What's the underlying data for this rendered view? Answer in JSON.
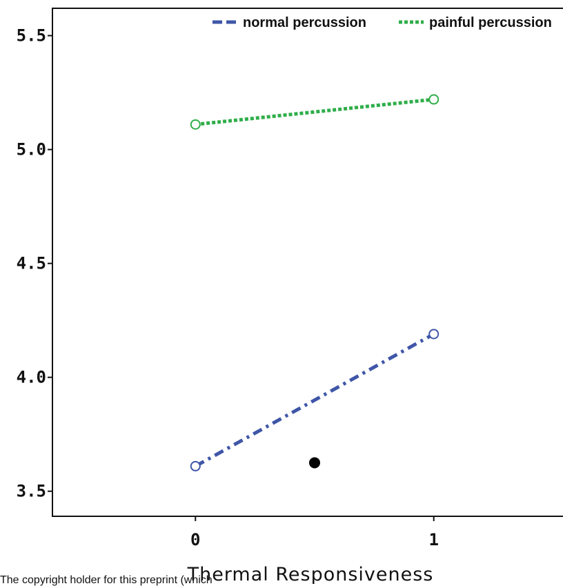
{
  "chart_data": {
    "type": "line",
    "title": "",
    "xlabel": "Thermal Responsiveness",
    "ylabel": "",
    "x_ticks": [
      "0",
      "1"
    ],
    "y_ticks": [
      "3.5",
      "4.0",
      "4.5",
      "5.0",
      "5.5"
    ],
    "xlim": [
      -0.6,
      1.6
    ],
    "ylim": [
      3.39,
      5.62
    ],
    "grid": false,
    "legend_position": "top-right",
    "series": [
      {
        "name": "normal percussion",
        "x": [
          0,
          1
        ],
        "values": [
          3.61,
          4.19
        ],
        "color": "#3f56a8",
        "dash": "dash-dot"
      },
      {
        "name": "painful percussion",
        "x": [
          0,
          1
        ],
        "values": [
          5.11,
          5.22
        ],
        "color": "#2fae49",
        "dash": "dotted"
      }
    ],
    "annotations": [
      {
        "type": "point",
        "x": 0.5,
        "y": 3.625,
        "color": "#000000"
      }
    ]
  },
  "footer_note": "The copyright holder for this preprint (which"
}
